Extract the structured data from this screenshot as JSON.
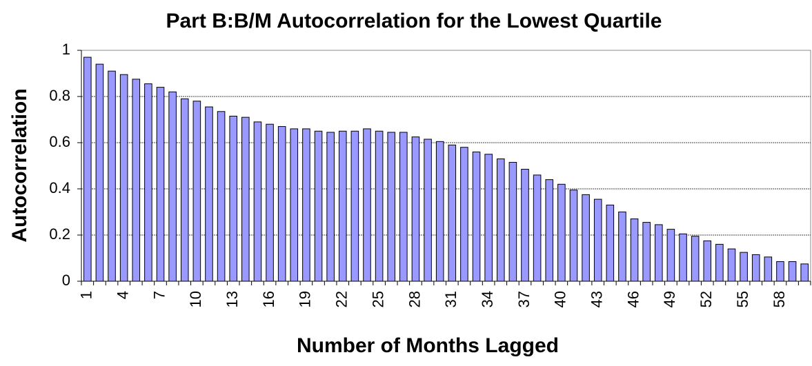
{
  "chart_data": {
    "type": "bar",
    "title": "Part B:B/M Autocorrelation for the Lowest Quartile",
    "x_label": "Number of Months Lagged",
    "y_label": "Autocorrelation",
    "categories": [
      "1",
      null,
      null,
      "4",
      null,
      null,
      "7",
      null,
      null,
      "10",
      null,
      null,
      "13",
      null,
      null,
      "16",
      null,
      null,
      "19",
      null,
      null,
      "22",
      null,
      null,
      "25",
      null,
      null,
      "28",
      null,
      null,
      "31",
      null,
      null,
      "34",
      null,
      null,
      "37",
      null,
      null,
      "40",
      null,
      null,
      "43",
      null,
      null,
      "46",
      null,
      null,
      "49",
      null,
      null,
      "52",
      null,
      null,
      "55",
      null,
      null,
      "58",
      null,
      null
    ],
    "values": [
      0.97,
      0.94,
      0.91,
      0.895,
      0.875,
      0.855,
      0.84,
      0.82,
      0.79,
      0.78,
      0.755,
      0.735,
      0.715,
      0.71,
      0.69,
      0.68,
      0.67,
      0.66,
      0.66,
      0.65,
      0.645,
      0.65,
      0.65,
      0.66,
      0.65,
      0.645,
      0.645,
      0.625,
      0.615,
      0.605,
      0.59,
      0.58,
      0.56,
      0.55,
      0.53,
      0.515,
      0.485,
      0.46,
      0.44,
      0.42,
      0.395,
      0.375,
      0.355,
      0.33,
      0.3,
      0.27,
      0.255,
      0.245,
      0.225,
      0.205,
      0.195,
      0.175,
      0.16,
      0.14,
      0.125,
      0.115,
      0.105,
      0.085,
      0.085,
      0.075
    ],
    "color": "#9999ff",
    "ylim": [
      0,
      1
    ],
    "yticks": [
      0,
      0.2,
      0.4,
      0.6,
      0.8,
      1
    ],
    "grid": true
  }
}
